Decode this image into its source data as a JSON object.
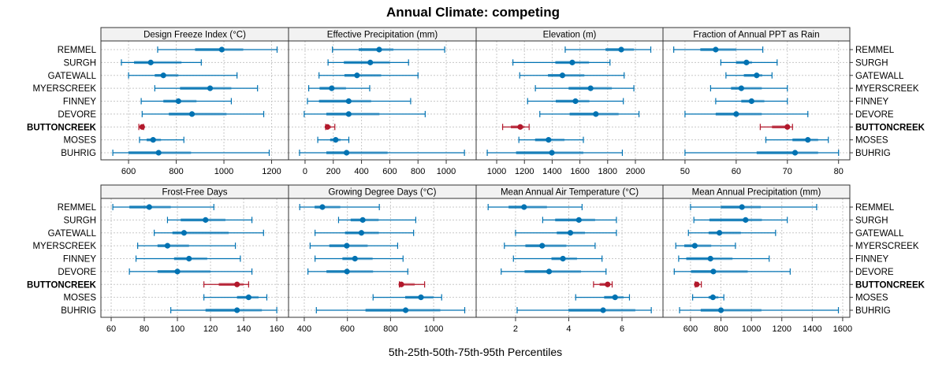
{
  "chart_data": {
    "type": "dot-whisker",
    "title": "Annual Climate: competing",
    "xlabel": "5th-25th-50th-75th-95th Percentiles",
    "highlight_row": "BUTTONCREEK",
    "colors": {
      "default": "#0072b2",
      "highlight": "#b2182b",
      "strip_bg": "#f2f2f2",
      "grid": "#c8c8c8"
    },
    "rows": [
      "REMMEL",
      "SURGH",
      "GATEWALL",
      "MYERSCREEK",
      "FINNEY",
      "DEVORE",
      "BUTTONCREEK",
      "MOSES",
      "BUHRIG"
    ],
    "panels": [
      {
        "title": "Design Freeze Index (°C)",
        "xlim": [
          484,
          1271
        ],
        "ticks": [
          600,
          800,
          1000,
          1200
        ],
        "data": {
          "REMMEL": [
            722,
            879,
            991,
            1081,
            1223
          ],
          "SURGH": [
            570,
            623,
            693,
            822,
            905
          ],
          "GATEWALL": [
            600,
            710,
            746,
            809,
            1055
          ],
          "MYERSCREEK": [
            710,
            816,
            942,
            1031,
            1141
          ],
          "FINNEY": [
            653,
            746,
            809,
            885,
            1031
          ],
          "DEVORE": [
            657,
            769,
            866,
            1011,
            1167
          ],
          "BUTTONCREEK": [
            643,
            650,
            657,
            660,
            663
          ],
          "MOSES": [
            646,
            676,
            703,
            736,
            832
          ],
          "BUHRIG": [
            534,
            600,
            726,
            862,
            1190
          ]
        }
      },
      {
        "title": "Effective Precipitation (mm)",
        "xlim": [
          -117,
          1212
        ],
        "ticks": [
          0,
          200,
          400,
          600,
          800,
          1000
        ],
        "data": {
          "REMMEL": [
            194,
            380,
            525,
            626,
            989
          ],
          "SURGH": [
            163,
            275,
            462,
            600,
            733
          ],
          "GATEWALL": [
            99,
            279,
            368,
            539,
            800
          ],
          "MYERSCREEK": [
            26,
            103,
            189,
            290,
            458
          ],
          "FINNEY": [
            17,
            99,
            309,
            468,
            748
          ],
          "DEVORE": [
            -6,
            151,
            309,
            527,
            851
          ],
          "BUTTONCREEK": [
            146,
            150,
            159,
            185,
            211
          ],
          "MOSES": [
            90,
            178,
            217,
            252,
            310
          ],
          "BUHRIG": [
            -39,
            151,
            294,
            585,
            1129
          ]
        }
      },
      {
        "title": "Elevation (m)",
        "xlim": [
          852,
          2199
        ],
        "ticks": [
          1000,
          1200,
          1400,
          1600,
          1800,
          2000
        ],
        "data": {
          "REMMEL": [
            1494,
            1785,
            1898,
            1989,
            2111
          ],
          "SURGH": [
            1117,
            1423,
            1545,
            1666,
            1817
          ],
          "GATEWALL": [
            1166,
            1370,
            1474,
            1632,
            1919
          ],
          "MYERSCREEK": [
            1279,
            1519,
            1677,
            1830,
            1989
          ],
          "FINNEY": [
            1223,
            1426,
            1568,
            1668,
            1913
          ],
          "DEVORE": [
            1311,
            1526,
            1715,
            1879,
            2026
          ],
          "BUTTONCREEK": [
            1043,
            1102,
            1170,
            1200,
            1234
          ],
          "MOSES": [
            1160,
            1277,
            1374,
            1489,
            1625
          ],
          "BUHRIG": [
            932,
            1140,
            1398,
            1625,
            1906
          ]
        }
      },
      {
        "title": "Fraction of Annual PPT as Rain",
        "xlim": [
          45.7,
          82.2
        ],
        "ticks": [
          50,
          60,
          70,
          80
        ],
        "data": {
          "REMMEL": [
            47.8,
            53.0,
            56.0,
            60.0,
            65.2
          ],
          "SURGH": [
            57.0,
            60.0,
            62.0,
            63.1,
            68.0
          ],
          "GATEWALL": [
            58.0,
            61.5,
            64.0,
            65.1,
            67.0
          ],
          "MYERSCREEK": [
            55.0,
            59.0,
            61.0,
            65.0,
            70.0
          ],
          "FINNEY": [
            56.0,
            61.0,
            63.0,
            65.5,
            70.0
          ],
          "DEVORE": [
            50.0,
            56.0,
            60.0,
            65.0,
            74.0
          ],
          "BUTTONCREEK": [
            64.7,
            67.0,
            70.0,
            70.5,
            71.0
          ],
          "MOSES": [
            65.8,
            71.0,
            74.0,
            76.0,
            78.0
          ],
          "BUHRIG": [
            50.0,
            64.0,
            71.5,
            76.0,
            80.0
          ]
        }
      },
      {
        "title": "Frost-Free Days",
        "xlim": [
          53.8,
          167.1
        ],
        "ticks": [
          60,
          80,
          100,
          120,
          140,
          160
        ],
        "data": {
          "REMMEL": [
            61,
            71,
            83,
            96,
            122
          ],
          "SURGH": [
            94,
            102,
            117,
            129,
            145
          ],
          "GATEWALL": [
            86,
            97,
            104,
            131,
            152
          ],
          "MYERSCREEK": [
            76,
            88,
            94,
            107,
            135
          ],
          "FINNEY": [
            75,
            98,
            107,
            118,
            138
          ],
          "DEVORE": [
            71,
            88,
            100,
            120,
            145
          ],
          "BUTTONCREEK": [
            116,
            125,
            136,
            140,
            143
          ],
          "MOSES": [
            116,
            136,
            143,
            149,
            154
          ],
          "BUHRIG": [
            96,
            117,
            136,
            151,
            160
          ]
        }
      },
      {
        "title": "Growing Degree Days (°C)",
        "xlim": [
          327,
          1197
        ],
        "ticks": [
          400,
          600,
          800,
          1000
        ],
        "data": {
          "REMMEL": [
            379,
            448,
            484,
            567,
            748
          ],
          "SURGH": [
            559,
            615,
            671,
            745,
            917
          ],
          "GATEWALL": [
            450,
            589,
            665,
            746,
            907
          ],
          "MYERSCREEK": [
            427,
            516,
            597,
            694,
            833
          ],
          "FINNEY": [
            450,
            577,
            635,
            717,
            858
          ],
          "DEVORE": [
            417,
            503,
            598,
            719,
            880
          ],
          "BUTTONCREEK": [
            841,
            845,
            850,
            912,
            958
          ],
          "MOSES": [
            719,
            868,
            941,
            999,
            1037
          ],
          "BUHRIG": [
            456,
            684,
            870,
            1031,
            1144
          ]
        }
      },
      {
        "title": "Mean Annual Air Temperature (°C)",
        "xlim": [
          0.52,
          7.54
        ],
        "ticks": [
          2,
          4,
          6
        ],
        "data": {
          "REMMEL": [
            0.97,
            1.74,
            2.32,
            3.18,
            4.5
          ],
          "SURGH": [
            3.02,
            3.49,
            4.38,
            4.99,
            5.79
          ],
          "GATEWALL": [
            2.0,
            3.55,
            4.06,
            4.61,
            5.79
          ],
          "MYERSCREEK": [
            1.58,
            2.37,
            3.0,
            3.91,
            4.99
          ],
          "FINNEY": [
            1.92,
            3.35,
            3.78,
            4.31,
            5.25
          ],
          "DEVORE": [
            1.46,
            2.34,
            3.26,
            4.46,
            5.4
          ],
          "BUTTONCREEK": [
            4.93,
            5.16,
            5.46,
            5.55,
            5.63
          ],
          "MOSES": [
            4.26,
            5.33,
            5.74,
            6.06,
            6.28
          ],
          "BUHRIG": [
            2.06,
            3.99,
            5.29,
            6.5,
            7.1
          ]
        }
      },
      {
        "title": "Mean Annual Precipitation (mm)",
        "xlim": [
          419,
          1647
        ],
        "ticks": [
          600,
          800,
          1000,
          1200,
          1400,
          1600
        ],
        "data": {
          "REMMEL": [
            600,
            800,
            938,
            1062,
            1429
          ],
          "SURGH": [
            622,
            724,
            962,
            1069,
            1236
          ],
          "GATEWALL": [
            586,
            719,
            790,
            931,
            1159
          ],
          "MYERSCREEK": [
            503,
            559,
            628,
            736,
            895
          ],
          "FINNEY": [
            522,
            572,
            731,
            876,
            1117
          ],
          "DEVORE": [
            493,
            603,
            750,
            976,
            1255
          ],
          "BUTTONCREEK": [
            631,
            636,
            641,
            655,
            671
          ],
          "MOSES": [
            614,
            719,
            747,
            783,
            819
          ],
          "BUHRIG": [
            528,
            667,
            800,
            1066,
            1572
          ]
        }
      }
    ]
  }
}
